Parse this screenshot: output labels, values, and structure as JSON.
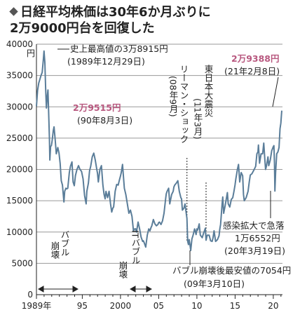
{
  "title": {
    "icon": "diamond-icon",
    "line1": "日経平均株価は30年6か月ぶりに",
    "line2": "2万9000円台を回復した"
  },
  "chart_data": {
    "type": "line",
    "y_unit_label": "円",
    "ylim": [
      0,
      40000
    ],
    "y_ticks": [
      0,
      5000,
      10000,
      15000,
      20000,
      25000,
      30000,
      35000,
      40000
    ],
    "x_tick_labels": [
      "1989年",
      "95",
      "2000",
      "05",
      "10",
      "15",
      "20"
    ],
    "x_tick_years": [
      1989,
      1995,
      2000,
      2005,
      2010,
      2015,
      2020
    ],
    "xlim": [
      1989,
      2021.2
    ],
    "grid": "horizontal",
    "line_color": "#5a7d99",
    "highlight_color": "#b8587f",
    "series": [
      {
        "values": [
          [
            1989.0,
            30100
          ],
          [
            1989.15,
            32600
          ],
          [
            1989.3,
            33800
          ],
          [
            1989.45,
            34400
          ],
          [
            1989.6,
            35000
          ],
          [
            1989.75,
            35500
          ],
          [
            1989.9,
            37500
          ],
          [
            1989.99,
            38915
          ],
          [
            1990.1,
            37100
          ],
          [
            1990.2,
            33000
          ],
          [
            1990.3,
            29800
          ],
          [
            1990.4,
            31500
          ],
          [
            1990.5,
            32700
          ],
          [
            1990.59,
            29515
          ],
          [
            1990.7,
            25000
          ],
          [
            1990.75,
            21500
          ],
          [
            1990.85,
            23700
          ],
          [
            1990.95,
            23800
          ],
          [
            1991.05,
            24500
          ],
          [
            1991.2,
            26200
          ],
          [
            1991.3,
            26800
          ],
          [
            1991.45,
            24800
          ],
          [
            1991.6,
            22500
          ],
          [
            1991.8,
            23500
          ],
          [
            1991.95,
            22600
          ],
          [
            1992.1,
            21000
          ],
          [
            1992.25,
            18200
          ],
          [
            1992.4,
            17500
          ],
          [
            1992.6,
            14800
          ],
          [
            1992.7,
            16500
          ],
          [
            1992.85,
            17000
          ],
          [
            1992.95,
            16900
          ],
          [
            1993.1,
            17000
          ],
          [
            1993.3,
            19500
          ],
          [
            1993.45,
            20500
          ],
          [
            1993.65,
            21200
          ],
          [
            1993.8,
            18000
          ],
          [
            1993.95,
            17400
          ],
          [
            1994.1,
            19000
          ],
          [
            1994.3,
            20000
          ],
          [
            1994.5,
            20600
          ],
          [
            1994.7,
            20000
          ],
          [
            1994.9,
            19700
          ],
          [
            1995.1,
            18500
          ],
          [
            1995.3,
            15800
          ],
          [
            1995.5,
            14500
          ],
          [
            1995.6,
            16500
          ],
          [
            1995.8,
            17800
          ],
          [
            1995.95,
            19800
          ],
          [
            1996.1,
            20500
          ],
          [
            1996.3,
            22000
          ],
          [
            1996.5,
            22600
          ],
          [
            1996.7,
            21500
          ],
          [
            1996.9,
            20000
          ],
          [
            1996.99,
            19400
          ],
          [
            1997.1,
            18000
          ],
          [
            1997.3,
            20000
          ],
          [
            1997.5,
            20600
          ],
          [
            1997.7,
            17500
          ],
          [
            1997.85,
            16000
          ],
          [
            1997.99,
            15300
          ],
          [
            1998.1,
            16500
          ],
          [
            1998.3,
            15500
          ],
          [
            1998.5,
            16500
          ],
          [
            1998.7,
            14500
          ],
          [
            1998.85,
            13200
          ],
          [
            1998.99,
            13800
          ],
          [
            1999.1,
            14000
          ],
          [
            1999.3,
            16500
          ],
          [
            1999.5,
            17600
          ],
          [
            1999.7,
            17500
          ],
          [
            1999.9,
            18500
          ],
          [
            1999.99,
            18900
          ],
          [
            2000.1,
            19500
          ],
          [
            2000.27,
            20800
          ],
          [
            2000.5,
            17000
          ],
          [
            2000.7,
            16000
          ],
          [
            2000.9,
            14500
          ],
          [
            2000.99,
            13800
          ],
          [
            2001.1,
            13000
          ],
          [
            2001.3,
            13500
          ],
          [
            2001.5,
            12500
          ],
          [
            2001.7,
            10200
          ],
          [
            2001.85,
            10500
          ],
          [
            2001.99,
            10500
          ],
          [
            2002.1,
            10000
          ],
          [
            2002.3,
            11600
          ],
          [
            2002.5,
            10500
          ],
          [
            2002.7,
            9200
          ],
          [
            2002.9,
            8500
          ],
          [
            2002.99,
            8600
          ],
          [
            2003.1,
            8300
          ],
          [
            2003.3,
            7600
          ],
          [
            2003.5,
            9500
          ],
          [
            2003.7,
            10500
          ],
          [
            2003.85,
            10200
          ],
          [
            2003.99,
            10700
          ],
          [
            2004.1,
            11000
          ],
          [
            2004.3,
            12000
          ],
          [
            2004.5,
            11300
          ],
          [
            2004.7,
            11000
          ],
          [
            2004.9,
            11200
          ],
          [
            2004.99,
            11500
          ],
          [
            2005.1,
            11600
          ],
          [
            2005.3,
            11200
          ],
          [
            2005.5,
            11800
          ],
          [
            2005.7,
            13000
          ],
          [
            2005.9,
            15200
          ],
          [
            2005.99,
            16100
          ],
          [
            2006.1,
            16500
          ],
          [
            2006.3,
            17000
          ],
          [
            2006.45,
            14500
          ],
          [
            2006.7,
            16000
          ],
          [
            2006.9,
            16500
          ],
          [
            2006.99,
            17200
          ],
          [
            2007.1,
            17500
          ],
          [
            2007.3,
            17800
          ],
          [
            2007.5,
            18200
          ],
          [
            2007.7,
            16500
          ],
          [
            2007.9,
            15500
          ],
          [
            2007.99,
            15300
          ],
          [
            2008.1,
            13500
          ],
          [
            2008.3,
            13800
          ],
          [
            2008.45,
            14500
          ],
          [
            2008.6,
            13000
          ],
          [
            2008.7,
            12200
          ],
          [
            2008.8,
            8500
          ],
          [
            2008.9,
            8000
          ],
          [
            2008.99,
            8800
          ],
          [
            2009.1,
            7900
          ],
          [
            2009.19,
            7054
          ],
          [
            2009.35,
            8900
          ],
          [
            2009.5,
            9500
          ],
          [
            2009.7,
            10500
          ],
          [
            2009.9,
            9600
          ],
          [
            2009.99,
            10500
          ],
          [
            2010.1,
            10300
          ],
          [
            2010.3,
            11300
          ],
          [
            2010.45,
            9500
          ],
          [
            2010.7,
            9100
          ],
          [
            2010.9,
            9900
          ],
          [
            2010.99,
            10200
          ],
          [
            2011.1,
            10600
          ],
          [
            2011.2,
            8700
          ],
          [
            2011.35,
            9500
          ],
          [
            2011.6,
            9500
          ],
          [
            2011.8,
            8600
          ],
          [
            2011.99,
            8500
          ],
          [
            2012.1,
            9000
          ],
          [
            2012.25,
            10200
          ],
          [
            2012.45,
            8500
          ],
          [
            2012.7,
            8800
          ],
          [
            2012.9,
            9400
          ],
          [
            2012.99,
            10400
          ],
          [
            2013.1,
            11200
          ],
          [
            2013.3,
            14500
          ],
          [
            2013.38,
            15600
          ],
          [
            2013.5,
            13000
          ],
          [
            2013.7,
            14200
          ],
          [
            2013.99,
            16300
          ],
          [
            2014.1,
            14500
          ],
          [
            2014.3,
            14000
          ],
          [
            2014.5,
            15200
          ],
          [
            2014.7,
            15500
          ],
          [
            2014.85,
            16500
          ],
          [
            2014.99,
            17500
          ],
          [
            2015.1,
            18500
          ],
          [
            2015.3,
            20000
          ],
          [
            2015.45,
            20800
          ],
          [
            2015.6,
            18000
          ],
          [
            2015.8,
            19500
          ],
          [
            2015.99,
            19000
          ],
          [
            2016.1,
            16000
          ],
          [
            2016.2,
            15000
          ],
          [
            2016.45,
            15500
          ],
          [
            2016.7,
            16500
          ],
          [
            2016.85,
            18000
          ],
          [
            2016.99,
            19100
          ],
          [
            2017.2,
            19300
          ],
          [
            2017.5,
            20000
          ],
          [
            2017.7,
            20500
          ],
          [
            2017.85,
            22500
          ],
          [
            2017.99,
            22800
          ],
          [
            2018.05,
            23900
          ],
          [
            2018.2,
            21000
          ],
          [
            2018.4,
            22500
          ],
          [
            2018.6,
            22500
          ],
          [
            2018.75,
            24200
          ],
          [
            2018.9,
            21500
          ],
          [
            2018.99,
            20000
          ],
          [
            2019.1,
            20500
          ],
          [
            2019.3,
            22000
          ],
          [
            2019.4,
            20600
          ],
          [
            2019.6,
            21500
          ],
          [
            2019.8,
            23000
          ],
          [
            2019.99,
            23600
          ],
          [
            2020.08,
            23800
          ],
          [
            2020.15,
            21000
          ],
          [
            2020.21,
            16552
          ],
          [
            2020.3,
            19500
          ],
          [
            2020.45,
            22500
          ],
          [
            2020.6,
            22800
          ],
          [
            2020.75,
            23500
          ],
          [
            2020.88,
            26500
          ],
          [
            2020.99,
            27400
          ],
          [
            2021.05,
            28500
          ],
          [
            2021.11,
            29388
          ]
        ]
      }
    ],
    "annotations": {
      "peak": {
        "label": "史上最高値の3万8915円",
        "date": "(1989年12月29日)",
        "x": 1989.99,
        "y": 38915
      },
      "y1990": {
        "label": "2万9515円",
        "date": "(90年8月3日)",
        "x": 1990.59,
        "y": 29515
      },
      "y2021": {
        "label": "2万9388円",
        "date": "(21年2月8日)",
        "x": 2021.11,
        "y": 29388
      },
      "covid": {
        "line1": "感染拡大で急落",
        "line2": "1万6552円",
        "date": "(20年3月19日)",
        "x": 2020.21,
        "y": 16552
      },
      "bubble_low": {
        "label": "バブル崩壊後最安値の7054円",
        "date": "(09年3月10日)",
        "x": 2009.19,
        "y": 7054
      },
      "lehman": {
        "line1": "リーマン・ショック",
        "line2": "(08年9月)",
        "x": 2008.7
      },
      "quake": {
        "line1": "東日本大震災",
        "line2": "(11年3月)",
        "x": 2011.2
      },
      "bubble_period": {
        "line1": "バブル",
        "line2": "崩壊",
        "x_start": 1989,
        "x_end": 1993
      },
      "it_bubble_period": {
        "line1": "ITバブル",
        "line2": "崩壊",
        "x_start": 2000.3,
        "x_end": 2002.7
      }
    }
  }
}
